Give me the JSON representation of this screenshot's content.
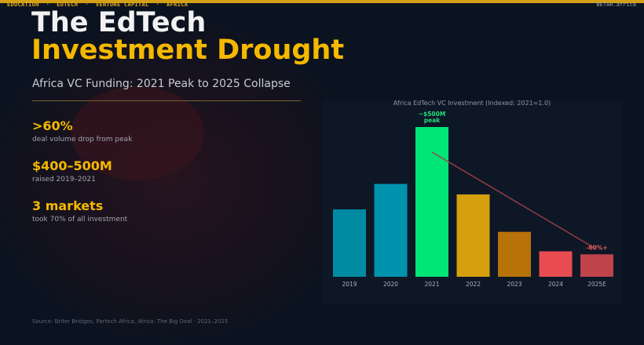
{
  "header": {
    "tags": "EDUCATION  ·  EDTECH  ·  VENTURE CAPITAL  ·  AFRICA",
    "brand": "BETAR.africa"
  },
  "title": {
    "line1": "The EdTech",
    "line2": "Investment Drought",
    "subtitle": "Africa VC Funding: 2021 Peak to 2025 Collapse"
  },
  "stats": [
    {
      "value": ">60%",
      "label": "deal volume drop from peak"
    },
    {
      "value": "$400–500M",
      "label": "raised 2019–2021"
    },
    {
      "value": "3 markets",
      "label": "took 70% of all investment"
    }
  ],
  "source": "Source: Briter Bridges, Partech Africa, Africa: The Big Deal · 2021–2025",
  "chart_data": {
    "type": "bar",
    "title": "Africa EdTech VC Investment (Indexed: 2021=1.0)",
    "categories": [
      "2019",
      "2020",
      "2021",
      "2022",
      "2023",
      "2024",
      "2025E"
    ],
    "values": [
      0.45,
      0.62,
      1.0,
      0.55,
      0.3,
      0.17,
      0.15
    ],
    "colors": [
      "#008ba3",
      "#0093ad",
      "#00e676",
      "#d4a00e",
      "#b8720a",
      "#e84c50",
      "#c0444a"
    ],
    "ylim": [
      0,
      1.0
    ],
    "grid": false,
    "annotations": [
      {
        "category": "2021",
        "text": "~$500M\npeak",
        "color": "#22dd77"
      },
      {
        "category": "2025E",
        "text": "-60%+",
        "color": "#e85c5c"
      }
    ],
    "trend_arrow": {
      "from": "2021",
      "to": "2025E",
      "color": "#a0404a"
    }
  }
}
